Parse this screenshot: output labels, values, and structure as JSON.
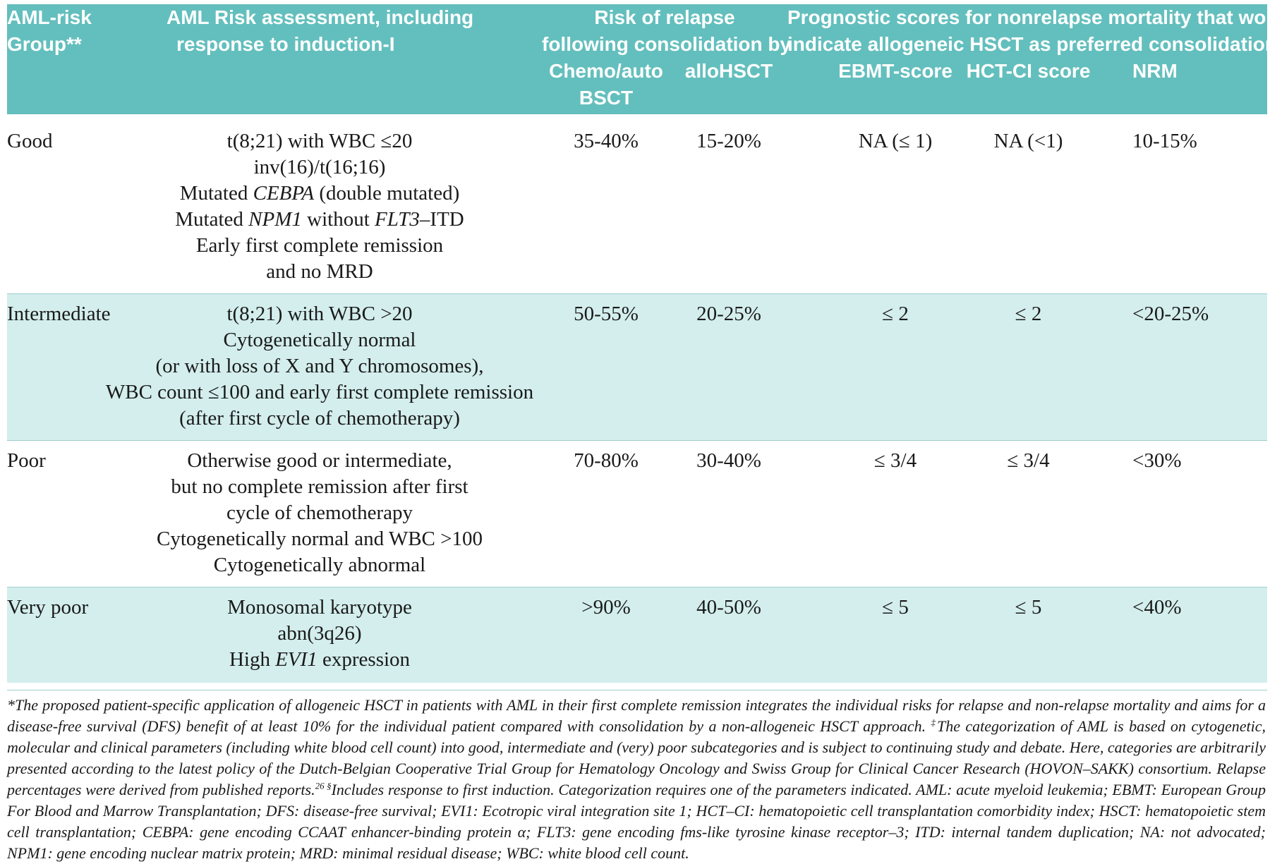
{
  "header": {
    "group": "AML-risk Group**",
    "assessment": [
      "AML Risk assessment, including",
      "response to induction-I"
    ],
    "relapse_title": [
      "Risk of relapse",
      "following consolidation by"
    ],
    "relapse_sub_chemo": [
      "Chemo/auto",
      "BSCT"
    ],
    "relapse_sub_allo": "alloHSCT",
    "prognostic_title": [
      "Prognostic scores for nonrelapse mortality that would",
      "indicate allogeneic HSCT as preferred consolidation"
    ],
    "ebmt": "EBMT-score",
    "hctci": "HCT-CI score",
    "nrm": "NRM"
  },
  "rows": [
    {
      "group": "Good",
      "assessment": [
        [
          {
            "t": "t(8;21) with WBC ≤20"
          }
        ],
        [
          {
            "t": "inv(16)/t(16;16)"
          }
        ],
        [
          {
            "t": "Mutated "
          },
          {
            "t": "CEBPA",
            "i": true
          },
          {
            "t": " (double mutated)"
          }
        ],
        [
          {
            "t": "Mutated "
          },
          {
            "t": "NPM1",
            "i": true
          },
          {
            "t": " without "
          },
          {
            "t": "FLT3",
            "i": true
          },
          {
            "t": "–ITD"
          }
        ],
        [
          {
            "t": "Early first complete remission"
          }
        ],
        [
          {
            "t": "and no MRD"
          }
        ]
      ],
      "chemo": "35-40%",
      "allo": "15-20%",
      "ebmt": "NA (≤ 1)",
      "hctci": "NA (<1)",
      "nrm": "10-15%"
    },
    {
      "group": "Intermediate",
      "assessment": [
        [
          {
            "t": "t(8;21) with WBC >20"
          }
        ],
        [
          {
            "t": "Cytogenetically normal"
          }
        ],
        [
          {
            "t": "(or with loss of X and Y chromosomes),"
          }
        ],
        [
          {
            "t": "WBC count ≤100 and early first complete remission"
          }
        ],
        [
          {
            "t": "(after first cycle of chemotherapy)"
          }
        ]
      ],
      "chemo": "50-55%",
      "allo": "20-25%",
      "ebmt": "≤ 2",
      "hctci": "≤ 2",
      "nrm": "<20-25%"
    },
    {
      "group": "Poor",
      "assessment": [
        [
          {
            "t": "Otherwise good or intermediate,"
          }
        ],
        [
          {
            "t": "but no complete remission after first"
          }
        ],
        [
          {
            "t": "cycle of chemotherapy"
          }
        ],
        [
          {
            "t": "Cytogenetically normal and WBC >100"
          }
        ],
        [
          {
            "t": "Cytogenetically abnormal"
          }
        ]
      ],
      "chemo": "70-80%",
      "allo": "30-40%",
      "ebmt": "≤ 3/4",
      "hctci": "≤ 3/4",
      "nrm": "<30%"
    },
    {
      "group": "Very poor",
      "assessment": [
        [
          {
            "t": "Monosomal karyotype"
          }
        ],
        [
          {
            "t": "abn(3q26)"
          }
        ],
        [
          {
            "t": "High "
          },
          {
            "t": "EVI1",
            "i": true
          },
          {
            "t": " expression"
          }
        ]
      ],
      "chemo": ">90%",
      "allo": "40-50%",
      "ebmt": "≤ 5",
      "hctci": "≤ 5",
      "nrm": "<40%"
    }
  ],
  "footnote": {
    "part1": "*The proposed patient-specific application of allogeneic HSCT in patients with AML in their first complete remission integrates the individual risks for relapse and non-relapse mortality and aims for a disease-free survival (DFS) benefit of at least 10% for the individual patient compared with consolidation by a non-allogeneic HSCT approach. ",
    "mark2": "‡",
    "part2": "The categorization of AML is based on cytogenetic, molecular and clinical parameters (including white blood cell count) into good, intermediate and (very) poor subcategories and is subject to continuing study and debate. Here, categories are arbitrarily presented according to the latest policy of the Dutch-Belgian Cooperative Trial Group for Hematology Oncology and Swiss Group for Clinical Cancer Research (HOVON–SAKK) consortium. Relapse percentages were derived from published reports.",
    "ref": "26",
    "mark3": " §",
    "part3": "Includes response to first induction. Categorization requires one of the parameters indicated. AML: acute myeloid leukemia; EBMT: European Group For Blood and Marrow Transplantation; DFS: disease-free survival; EVI1: Ecotropic viral integration site 1; HCT–CI: hematopoietic cell transplantation comorbidity index; HSCT: hematopoietic stem cell transplantation; CEBPA: gene encoding CCAAT enhancer-binding protein α; FLT3: gene encoding fms-like tyrosine kinase receptor–3; ITD: internal tandem duplication; NA: not advocated; NPM1: gene encoding nuclear matrix protein; MRD: minimal residual disease; WBC: white blood cell count."
  }
}
